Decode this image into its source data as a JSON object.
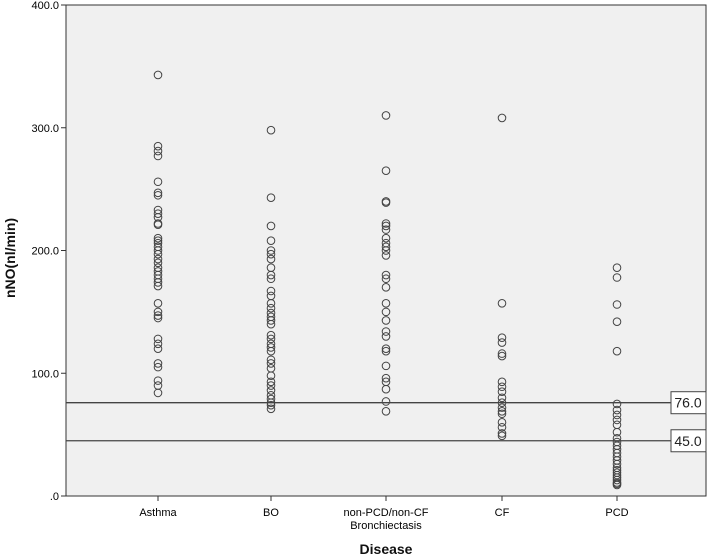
{
  "chart_data": {
    "type": "scatter",
    "xlabel": "Disease",
    "ylabel": "nNO(nl/min)",
    "ylim": [
      0,
      400
    ],
    "yticks": [
      ".0",
      "100.0",
      "200.0",
      "300.0",
      "400.0"
    ],
    "ytick_values": [
      0,
      100,
      200,
      300,
      400
    ],
    "categories": [
      {
        "label": "Asthma"
      },
      {
        "label": "BO"
      },
      {
        "label": "non-PCD/non-CF",
        "label2": "Bronchiectasis"
      },
      {
        "label": "CF"
      },
      {
        "label": "PCD"
      }
    ],
    "reference_lines": [
      {
        "value": 76.0,
        "label": "76.0"
      },
      {
        "value": 45.0,
        "label": "45.0"
      }
    ],
    "series": [
      {
        "values": [
          343,
          285,
          281,
          277,
          256,
          247,
          245,
          233,
          230,
          227,
          222,
          221,
          210,
          208,
          206,
          203,
          200,
          197,
          193,
          190,
          186,
          183,
          180,
          177,
          174,
          171,
          157,
          150,
          147,
          145,
          128,
          124,
          120,
          108,
          105,
          94,
          90,
          84
        ]
      },
      {
        "values": [
          298,
          243,
          220,
          208,
          200,
          197,
          193,
          186,
          180,
          177,
          167,
          163,
          157,
          153,
          149,
          146,
          143,
          140,
          131,
          128,
          124,
          121,
          118,
          111,
          108,
          104,
          98,
          93,
          90,
          86,
          82,
          79,
          76,
          74,
          71
        ]
      },
      {
        "values": [
          310,
          265,
          240,
          239,
          222,
          220,
          217,
          210,
          206,
          203,
          200,
          196,
          180,
          177,
          170,
          157,
          150,
          143,
          134,
          130,
          120,
          118,
          106,
          96,
          93,
          87,
          77,
          69
        ]
      },
      {
        "values": [
          308,
          157,
          129,
          125,
          116,
          114,
          93,
          89,
          85,
          80,
          76,
          72,
          69,
          67,
          60,
          56,
          51,
          49
        ]
      },
      {
        "values": [
          186,
          178,
          156,
          142,
          118,
          75,
          70,
          66,
          62,
          58,
          52,
          47,
          44,
          41,
          38,
          35,
          32,
          29,
          26,
          23,
          21,
          19,
          17,
          15,
          13,
          11,
          10,
          9
        ]
      }
    ]
  }
}
